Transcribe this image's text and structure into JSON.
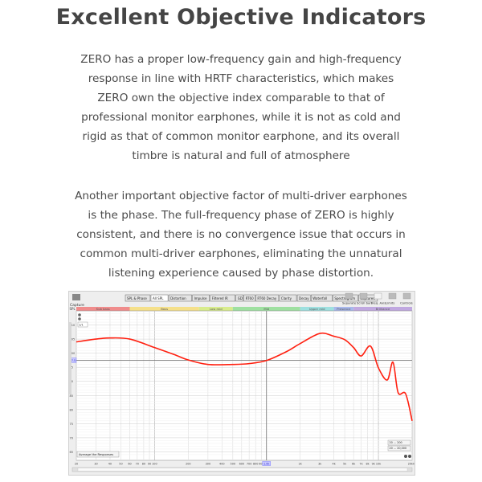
{
  "heading": "Excellent Objective Indicators",
  "paragraphs": [
    "ZERO has a proper low-frequency gain and high-frequency response in line with HRTF characteristics, which makes ZERO own the objective index comparable to that of professional monitor earphones, while it is not as cold and rigid as that of common monitor earphone, and its overall timbre is natural and full of atmosphere",
    "Another important objective factor of multi-driver earphones is the phase. The full-frequency phase of ZERO is highly consistent, and there is no convergence issue that occurs in common multi-driver earphones, eliminating the unnatural listening experience caused by phase distortion."
  ],
  "rew": {
    "capture_label": "Capture",
    "tabs": [
      "SPL & Phase",
      "All SPL",
      "Distortion",
      "Impulse",
      "Filtered IR",
      "GD",
      "RT60",
      "RT60 Decay",
      "Clarity",
      "Decay",
      "Waterfall",
      "Spectrogram",
      "Captured"
    ],
    "active_tab": "All SPL",
    "right_tools": [
      "Separate",
      "Scroll bars",
      "Freq. Axis",
      "Limits",
      "Controls"
    ],
    "bands": [
      {
        "label": "Sub bass",
        "from": 20,
        "to": 60,
        "color": "#f08c8c"
      },
      {
        "label": "Bass",
        "from": 60,
        "to": 250,
        "color": "#f5e08a"
      },
      {
        "label": "Low mid",
        "from": 250,
        "to": 500,
        "color": "#d8ec8c"
      },
      {
        "label": "Mid",
        "from": 500,
        "to": 2000,
        "color": "#9ee0a0"
      },
      {
        "label": "Upper mid",
        "from": 2000,
        "to": 4000,
        "color": "#9ee0e0"
      },
      {
        "label": "Presence",
        "from": 4000,
        "to": 6000,
        "color": "#a8b8ec"
      },
      {
        "label": "Brilliance",
        "from": 6000,
        "to": 20000,
        "color": "#c0a8e0"
      }
    ],
    "average_button": "Average the Responses",
    "range_buttons": [
      "20 ... 200",
      "20 ... 20,000"
    ],
    "ppo_value": "1/1",
    "cursor_freq_label": "1.0k",
    "cursor_spl_label": "97.5"
  },
  "chart_data": {
    "type": "line",
    "title": "",
    "xlabel": "",
    "ylabel": "SPL",
    "x_scale": "log",
    "xlim": [
      20,
      20000
    ],
    "ylim": [
      62,
      115
    ],
    "grid": true,
    "x_tick_labels": [
      "20",
      "30",
      "40",
      "50",
      "60",
      "70",
      "80",
      "90",
      "100",
      "200",
      "300",
      "400",
      "500",
      "600",
      "700",
      "800",
      "900",
      "1k",
      "2k",
      "3k",
      "4k",
      "5k",
      "6k",
      "7k",
      "8k",
      "9k",
      "10k",
      "20kHz"
    ],
    "x_ticks": [
      20,
      30,
      40,
      50,
      60,
      70,
      80,
      90,
      100,
      200,
      300,
      400,
      500,
      600,
      700,
      800,
      900,
      1000,
      2000,
      3000,
      4000,
      5000,
      6000,
      7000,
      8000,
      9000,
      10000,
      20000
    ],
    "y_ticks": [
      110,
      105,
      100,
      95,
      90,
      85,
      80,
      75,
      70,
      65
    ],
    "y_tick_labels": [
      "110",
      "105",
      "100",
      "95",
      "90",
      "85",
      "80",
      "75",
      "70",
      "65"
    ],
    "cursor": {
      "x": 1000,
      "y": 97.5
    },
    "series_color": "#ff2010",
    "series": [
      {
        "x": [
          20,
          30,
          40,
          60,
          100,
          150,
          200,
          300,
          500,
          700,
          1000,
          1500,
          2000,
          3000,
          4000,
          5000,
          6000,
          7000,
          8500,
          10000,
          12000,
          13500,
          15000,
          17500,
          20000
        ],
        "y": [
          104,
          105,
          105.4,
          105,
          102,
          99.5,
          97.6,
          96,
          96,
          96.3,
          97.4,
          100.5,
          103.4,
          107,
          106,
          104.8,
          102,
          99,
          102.5,
          94.8,
          90.5,
          96.8,
          86,
          85.6,
          76
        ]
      }
    ]
  }
}
